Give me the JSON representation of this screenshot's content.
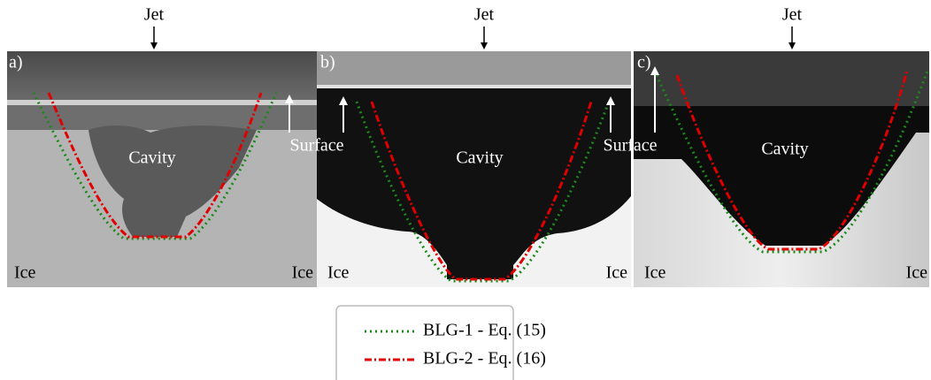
{
  "panels": [
    {
      "label": "a)",
      "jet": "Jet",
      "cavity": "Cavity",
      "ice_left": "Ice",
      "ice_right": "Ice"
    },
    {
      "label": "b)",
      "jet": "Jet",
      "cavity": "Cavity",
      "ice_left": "Ice",
      "ice_right": "Ice"
    },
    {
      "label": "c)",
      "jet": "Jet",
      "cavity": "Cavity",
      "ice_left": "Ice",
      "ice_right": "Ice"
    }
  ],
  "surface_labels": [
    "Surface",
    "Surface"
  ],
  "legend": [
    {
      "name": "BLG-1 - Eq. (15)",
      "color": "#1a8a1a",
      "dash": "2 4"
    },
    {
      "name": "BLG-2 - Eq. (16)",
      "color": "#e00000",
      "dash": "8 3 2 3"
    }
  ]
}
